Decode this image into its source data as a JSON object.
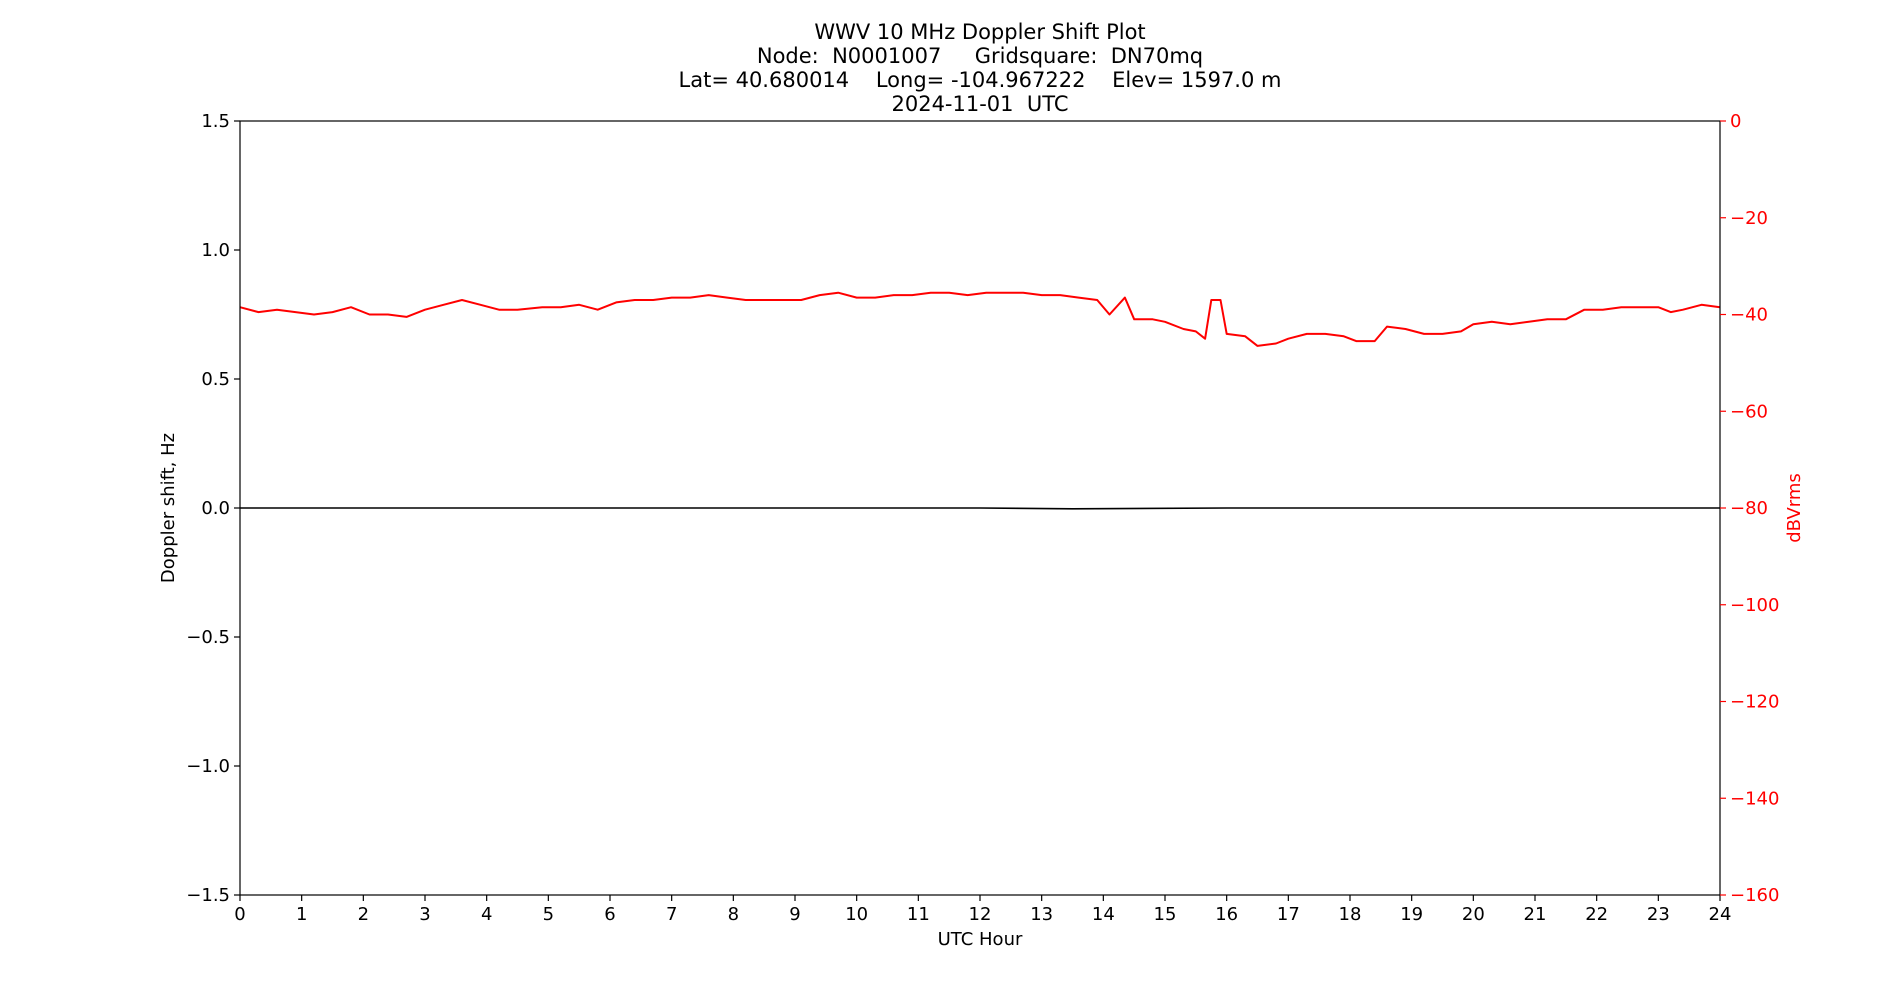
{
  "title_lines": [
    "WWV 10 MHz Doppler Shift Plot",
    "Node:  N0001007     Gridsquare:  DN70mq",
    "Lat= 40.680014    Long= -104.967222    Elev= 1597.0 m",
    "2024-11-01  UTC"
  ],
  "colors": {
    "doppler": "#000000",
    "power": "#ff0000",
    "axis": "#000000"
  },
  "chart_data": {
    "type": "line",
    "xlabel": "UTC Hour",
    "ylabel": "Doppler shift, Hz",
    "y2label": "dBVrms",
    "xlim": [
      0,
      24
    ],
    "ylim": [
      -1.5,
      1.5
    ],
    "y2lim": [
      -160,
      0
    ],
    "xticks": [
      0,
      1,
      2,
      3,
      4,
      5,
      6,
      7,
      8,
      9,
      10,
      11,
      12,
      13,
      14,
      15,
      16,
      17,
      18,
      19,
      20,
      21,
      22,
      23,
      24
    ],
    "yticks": [
      -1.5,
      -1.0,
      -0.5,
      0.0,
      0.5,
      1.0,
      1.5
    ],
    "ytick_labels": [
      "−1.5",
      "−1.0",
      "−0.5",
      "0.0",
      "0.5",
      "1.0",
      "1.5"
    ],
    "y2ticks": [
      -160,
      -140,
      -120,
      -100,
      -80,
      -60,
      -40,
      -20,
      0
    ],
    "y2tick_labels": [
      "−160",
      "−140",
      "−120",
      "−100",
      "−80",
      "−60",
      "−40",
      "−20",
      "0"
    ],
    "grid": false,
    "series": [
      {
        "axis": "left",
        "color": "#000000",
        "x": [
          0,
          4,
          8,
          12,
          13.5,
          16,
          20,
          24
        ],
        "y": [
          0.0,
          0.0,
          0.0,
          0.0,
          -0.003,
          0.0,
          0.0,
          0.0
        ]
      },
      {
        "axis": "right",
        "color": "#ff0000",
        "x": [
          0,
          0.3,
          0.6,
          0.9,
          1.2,
          1.5,
          1.8,
          2.1,
          2.4,
          2.7,
          3.0,
          3.3,
          3.6,
          3.9,
          4.2,
          4.5,
          4.9,
          5.2,
          5.5,
          5.8,
          6.1,
          6.4,
          6.7,
          7.0,
          7.3,
          7.6,
          7.9,
          8.2,
          8.5,
          8.8,
          9.1,
          9.4,
          9.7,
          10.0,
          10.3,
          10.6,
          10.9,
          11.2,
          11.5,
          11.8,
          12.1,
          12.4,
          12.7,
          13.0,
          13.3,
          13.6,
          13.9,
          14.1,
          14.35,
          14.5,
          14.8,
          15.0,
          15.3,
          15.5,
          15.65,
          15.75,
          15.9,
          16.0,
          16.3,
          16.5,
          16.8,
          17.0,
          17.3,
          17.6,
          17.9,
          18.1,
          18.4,
          18.6,
          18.9,
          19.2,
          19.5,
          19.8,
          20.0,
          20.3,
          20.6,
          20.9,
          21.2,
          21.5,
          21.8,
          22.1,
          22.4,
          22.7,
          23.0,
          23.2,
          23.4,
          23.7,
          24.0
        ],
        "y": [
          -38.5,
          -39.5,
          -39.0,
          -39.5,
          -40.0,
          -39.5,
          -38.5,
          -40.0,
          -40.0,
          -40.5,
          -39.0,
          -38.0,
          -37.0,
          -38.0,
          -39.0,
          -39.0,
          -38.5,
          -38.5,
          -38.0,
          -39.0,
          -37.5,
          -37.0,
          -37.0,
          -36.5,
          -36.5,
          -36.0,
          -36.5,
          -37.0,
          -37.0,
          -37.0,
          -37.0,
          -36.0,
          -35.5,
          -36.5,
          -36.5,
          -36.0,
          -36.0,
          -35.5,
          -35.5,
          -36.0,
          -35.5,
          -35.5,
          -35.5,
          -36.0,
          -36.0,
          -36.5,
          -37.0,
          -40.0,
          -36.5,
          -41.0,
          -41.0,
          -41.5,
          -43.0,
          -43.5,
          -45.0,
          -37.0,
          -37.0,
          -44.0,
          -44.5,
          -46.5,
          -46.0,
          -45.0,
          -44.0,
          -44.0,
          -44.5,
          -45.5,
          -45.5,
          -42.5,
          -43.0,
          -44.0,
          -44.0,
          -43.5,
          -42.0,
          -41.5,
          -42.0,
          -41.5,
          -41.0,
          -41.0,
          -39.0,
          -39.0,
          -38.5,
          -38.5,
          -38.5,
          -39.5,
          -39.0,
          -38.0,
          -38.5
        ]
      }
    ]
  }
}
